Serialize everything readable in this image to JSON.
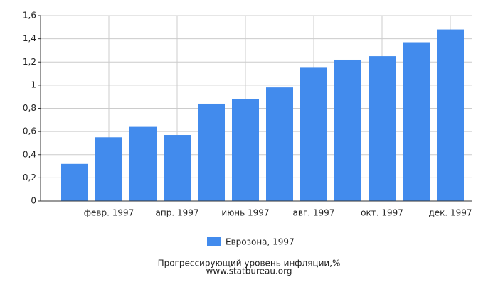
{
  "chart_data": {
    "type": "bar",
    "title": "Прогрессирующий уровень инфляции,%",
    "source": "www.statbureau.org",
    "categories": [
      null,
      "февр. 1997",
      null,
      "апр. 1997",
      null,
      "июнь 1997",
      null,
      "авг. 1997",
      null,
      "окт. 1997",
      null,
      "дек. 1997"
    ],
    "series": [
      {
        "name": "Еврозона, 1997",
        "color": "#428bed",
        "values": [
          0.32,
          0.55,
          0.64,
          0.57,
          0.84,
          0.88,
          0.98,
          1.15,
          1.22,
          1.25,
          1.37,
          1.48
        ]
      }
    ],
    "ylim": [
      0,
      1.6
    ],
    "yticks": [
      0,
      {
        "value": 0.2,
        "label": "0,2"
      },
      {
        "value": 0.4,
        "label": "0,4"
      },
      {
        "value": 0.6,
        "label": "0,6"
      },
      {
        "value": 0.8,
        "label": "0,8"
      },
      1,
      {
        "value": 1.2,
        "label": "1,2"
      },
      {
        "value": 1.4,
        "label": "1,4"
      },
      {
        "value": 1.6,
        "label": "1,6"
      }
    ],
    "grid": true
  }
}
